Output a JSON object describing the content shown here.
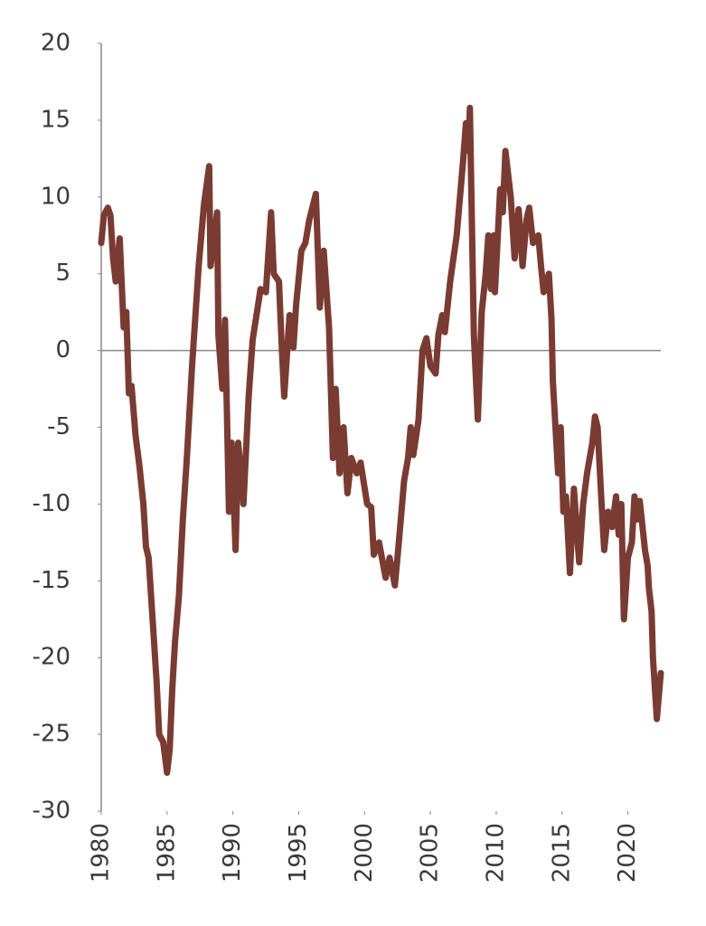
{
  "chart_data": {
    "type": "line",
    "x": [
      1980.0,
      1980.2,
      1980.5,
      1980.7,
      1980.9,
      1981.1,
      1981.4,
      1981.7,
      1981.9,
      1982.1,
      1982.3,
      1982.6,
      1982.9,
      1983.2,
      1983.4,
      1983.6,
      1983.9,
      1984.2,
      1984.4,
      1984.7,
      1985.0,
      1985.2,
      1985.4,
      1985.6,
      1985.9,
      1986.2,
      1986.5,
      1986.9,
      1987.4,
      1987.8,
      1988.2,
      1988.3,
      1988.8,
      1988.9,
      1989.2,
      1989.4,
      1989.7,
      1989.9,
      1990.2,
      1990.4,
      1990.8,
      1991.2,
      1991.5,
      1992.1,
      1992.5,
      1992.9,
      1993.1,
      1993.5,
      1993.7,
      1993.9,
      1994.3,
      1994.6,
      1994.8,
      1995.2,
      1995.5,
      1995.8,
      1996.3,
      1996.6,
      1996.9,
      1997.3,
      1997.6,
      1997.8,
      1998.1,
      1998.4,
      1998.7,
      1999.0,
      1999.4,
      1999.7,
      2000.2,
      2000.5,
      2000.7,
      2001.1,
      2001.6,
      2001.9,
      2002.3,
      2002.6,
      2003.0,
      2003.3,
      2003.5,
      2003.7,
      2004.1,
      2004.4,
      2004.7,
      2005.0,
      2005.4,
      2005.6,
      2005.9,
      2006.1,
      2006.5,
      2007.0,
      2007.3,
      2007.5,
      2007.7,
      2007.9,
      2008.0,
      2008.3,
      2008.6,
      2008.9,
      2009.2,
      2009.4,
      2009.6,
      2009.8,
      2009.9,
      2010.3,
      2010.5,
      2010.7,
      2011.1,
      2011.4,
      2011.7,
      2012.0,
      2012.3,
      2012.5,
      2012.8,
      2013.2,
      2013.4,
      2013.6,
      2014.0,
      2014.2,
      2014.3,
      2014.7,
      2014.9,
      2015.1,
      2015.3,
      2015.6,
      2015.9,
      2016.3,
      2016.6,
      2016.9,
      2017.3,
      2017.5,
      2017.7,
      2018.0,
      2018.2,
      2018.5,
      2018.8,
      2019.1,
      2019.3,
      2019.5,
      2019.7,
      2020.0,
      2020.3,
      2020.5,
      2020.7,
      2020.9,
      2021.3,
      2021.5,
      2021.6,
      2021.8,
      2021.9,
      2022.2,
      2022.5
    ],
    "series": [
      {
        "color": "#7a3b33",
        "values": [
          7,
          8.8,
          9.3,
          8.8,
          6,
          4.5,
          7.3,
          1.5,
          2.5,
          -2.8,
          -2.3,
          -5.5,
          -7.5,
          -10,
          -12.8,
          -13.5,
          -17.5,
          -21.5,
          -25,
          -25.5,
          -27.5,
          -26,
          -22,
          -19,
          -16,
          -11,
          -7,
          -1,
          5.5,
          9.5,
          12,
          5.5,
          9,
          1,
          -2.5,
          2,
          -10.5,
          -6,
          -13,
          -6,
          -10,
          -3,
          0.7,
          4,
          3.8,
          9,
          5,
          4.5,
          0.5,
          -3,
          2.3,
          0.2,
          3,
          6.5,
          7,
          8.5,
          10.2,
          2.8,
          6.5,
          1.5,
          -7,
          -2.5,
          -8,
          -5,
          -9.3,
          -7,
          -8,
          -7.3,
          -10,
          -10.2,
          -13.3,
          -12.5,
          -14.8,
          -13.5,
          -15.3,
          -12.5,
          -8.5,
          -7,
          -5,
          -6.8,
          -4.5,
          0,
          0.8,
          -1,
          -1.5,
          1,
          2.3,
          1.2,
          4.5,
          7.5,
          10.5,
          12.5,
          14.8,
          13,
          15.8,
          1,
          -4.5,
          2.5,
          5,
          7.5,
          4,
          7.5,
          3.8,
          10.5,
          9,
          13,
          10,
          6,
          9.2,
          5.5,
          8.5,
          9.3,
          7,
          7.5,
          5.5,
          3.8,
          5,
          2,
          -2,
          -8,
          -5,
          -10.5,
          -9.5,
          -14.5,
          -9,
          -13.8,
          -10,
          -8,
          -6,
          -4.3,
          -5,
          -10,
          -13,
          -10.5,
          -11.5,
          -9.5,
          -12,
          -10,
          -17.5,
          -13.5,
          -12.5,
          -9.5,
          -11,
          -9.8,
          -13,
          -14,
          -15.5,
          -17,
          -20,
          -24,
          -21
        ]
      }
    ],
    "xlim": [
      1980,
      2022.5
    ],
    "ylim": [
      -30,
      20
    ],
    "xticks": [
      1980,
      1985,
      1990,
      1995,
      2000,
      2005,
      2010,
      2015,
      2020
    ],
    "yticks": [
      -30,
      -25,
      -20,
      -15,
      -10,
      -5,
      0,
      5,
      10,
      15,
      20
    ]
  }
}
